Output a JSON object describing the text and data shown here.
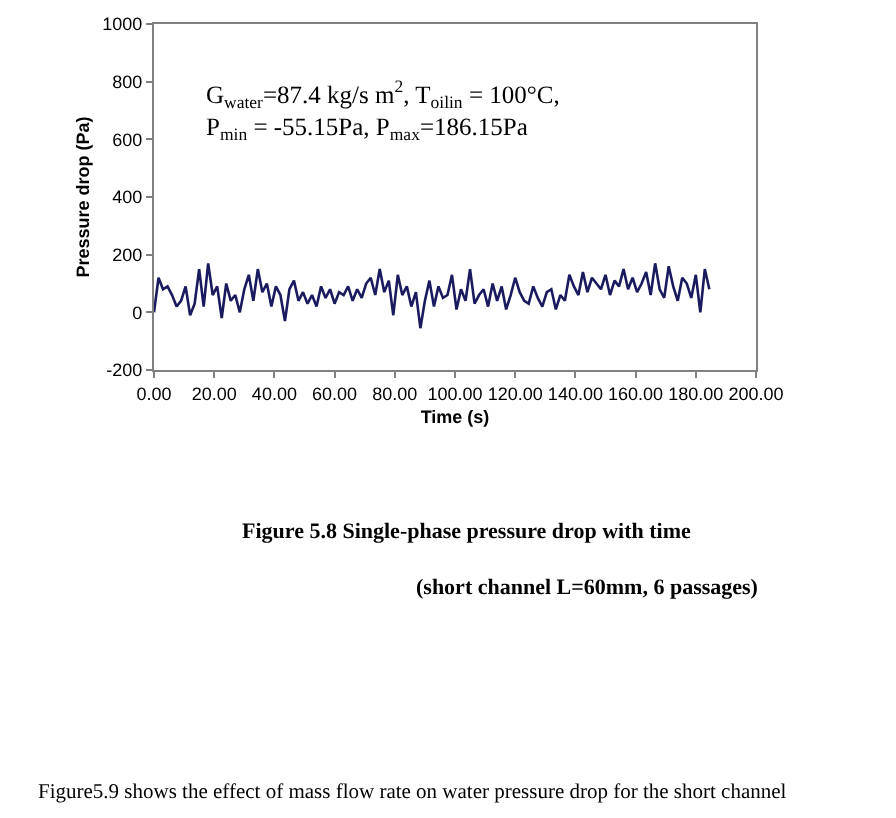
{
  "chart_data": {
    "type": "line",
    "xlabel": "Time (s)",
    "ylabel": "Pressure drop (Pa)",
    "x": [
      0,
      1.5,
      3,
      4.5,
      6,
      7.5,
      9,
      10.5,
      12,
      13.5,
      15,
      16.5,
      18,
      19.5,
      21,
      22.5,
      24,
      25.5,
      27,
      28.5,
      30,
      31.5,
      33,
      34.5,
      36,
      37.5,
      39,
      40.5,
      42,
      43.5,
      45,
      46.5,
      48,
      49.5,
      51,
      52.5,
      54,
      55.5,
      57,
      58.5,
      60,
      61.5,
      63,
      64.5,
      66,
      67.5,
      69,
      70.5,
      72,
      73.5,
      75,
      76.5,
      78,
      79.5,
      81,
      82.5,
      84,
      85.5,
      87,
      88.5,
      90,
      91.5,
      93,
      94.5,
      96,
      97.5,
      99,
      100.5,
      102,
      103.5,
      105,
      106.5,
      108,
      109.5,
      111,
      112.5,
      114,
      115.5,
      117,
      118.5,
      120,
      121.5,
      123,
      124.5,
      126,
      127.5,
      129,
      130.5,
      132,
      133.5,
      135,
      136.5,
      138,
      139.5,
      141,
      142.5,
      144,
      145.5,
      147,
      148.5,
      150,
      151.5,
      153,
      154.5,
      156,
      157.5,
      159,
      160.5,
      162,
      163.5,
      165,
      166.5,
      168,
      169.5,
      171,
      172.5,
      174,
      175.5,
      177,
      178.5,
      180,
      181.5,
      183,
      184.5
    ],
    "series": [
      {
        "color": "#1a1a5e",
        "values": [
          0,
          120,
          80,
          90,
          60,
          20,
          40,
          90,
          -10,
          30,
          150,
          20,
          170,
          60,
          90,
          -20,
          100,
          40,
          60,
          0,
          80,
          130,
          40,
          150,
          70,
          100,
          20,
          90,
          60,
          -30,
          80,
          110,
          40,
          70,
          30,
          60,
          20,
          90,
          50,
          80,
          30,
          70,
          60,
          90,
          40,
          80,
          50,
          100,
          120,
          60,
          150,
          70,
          110,
          -10,
          130,
          60,
          90,
          20,
          70,
          -55,
          40,
          110,
          20,
          90,
          50,
          60,
          130,
          10,
          80,
          40,
          150,
          30,
          60,
          80,
          20,
          100,
          40,
          90,
          10,
          60,
          120,
          70,
          40,
          30,
          90,
          50,
          20,
          70,
          80,
          10,
          60,
          40,
          130,
          90,
          60,
          140,
          70,
          120,
          100,
          80,
          130,
          60,
          110,
          90,
          150,
          80,
          120,
          70,
          100,
          140,
          60,
          170,
          80,
          50,
          160,
          90,
          40,
          120,
          100,
          50,
          130,
          0,
          150,
          80
        ]
      }
    ],
    "xlim": [
      0,
      200
    ],
    "xticks": [
      {
        "value": 0,
        "label": "0.00"
      },
      {
        "value": 20,
        "label": "20.00"
      },
      {
        "value": 40,
        "label": "40.00"
      },
      {
        "value": 60,
        "label": "60.00"
      },
      {
        "value": 80,
        "label": "80.00"
      },
      {
        "value": 100,
        "label": "100.00"
      },
      {
        "value": 120,
        "label": "120.00"
      },
      {
        "value": 140,
        "label": "140.00"
      },
      {
        "value": 160,
        "label": "160.00"
      },
      {
        "value": 180,
        "label": "180.00"
      },
      {
        "value": 200,
        "label": "200.00"
      }
    ],
    "ylim": [
      -200,
      1000
    ],
    "yticks": [
      -200,
      0,
      200,
      400,
      600,
      800,
      1000
    ],
    "marker": "none",
    "line_style": "solid",
    "annotations": [
      "G$_{water}$=87.4 kg/s m$^{2}$, T$_{oilin}$ = 100°C,\nP$_{min}$ = -55.15Pa, P$_{max}$=186.15Pa",
      "Figure 5.8 Single-phase pressure drop with time",
      "(short channel L=60mm, 6 passages)",
      "Figure5.9 shows the effect of mass flow rate on water pressure drop for the short channel"
    ]
  }
}
